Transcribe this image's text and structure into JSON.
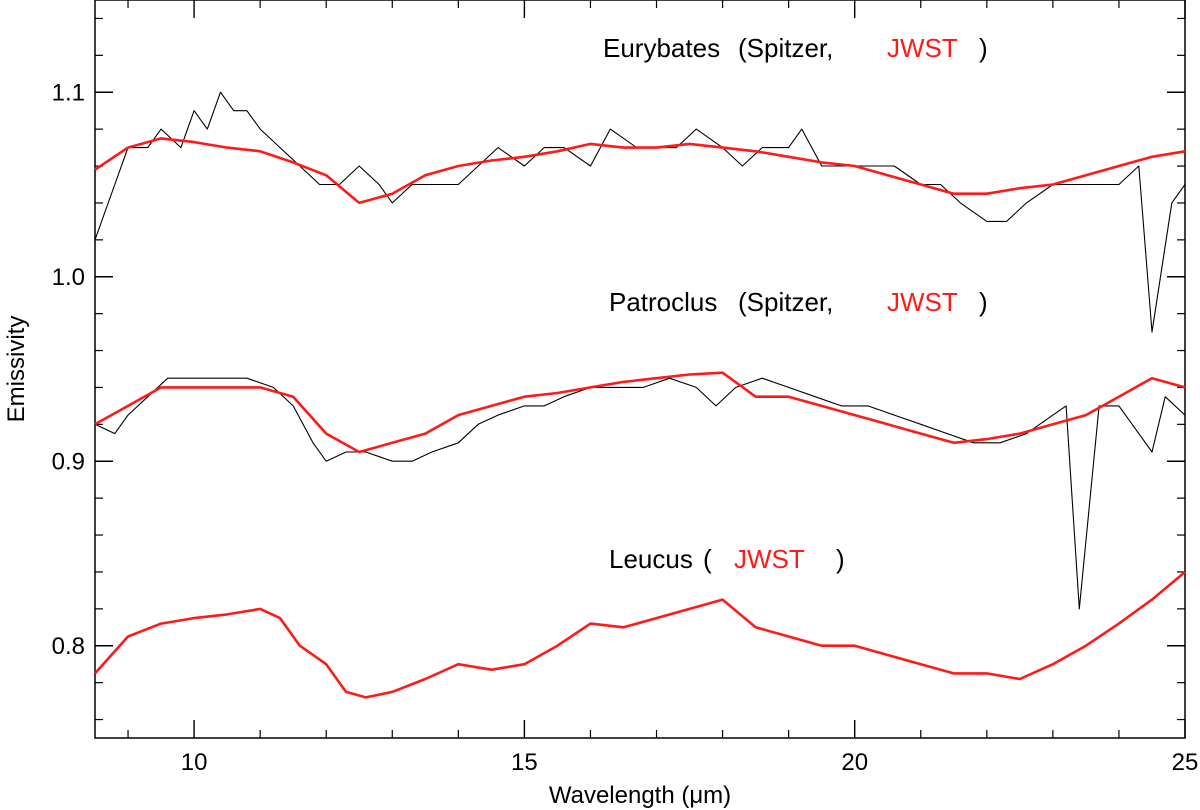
{
  "chart_data": {
    "type": "line",
    "title": "",
    "xlabel": "Wavelength (μm)",
    "ylabel": "Emissivity",
    "xlim": [
      8.5,
      25
    ],
    "ylim": [
      0.75,
      1.15
    ],
    "x_ticks": [
      {
        "value": 10,
        "label": "10"
      },
      {
        "value": 15,
        "label": "15"
      },
      {
        "value": 20,
        "label": "20"
      },
      {
        "value": 25,
        "label": "25"
      }
    ],
    "y_ticks": [
      {
        "value": 0.8,
        "label": "0.8"
      },
      {
        "value": 0.9,
        "label": "0.9"
      },
      {
        "value": 1.0,
        "label": "1.0"
      },
      {
        "value": 1.1,
        "label": "1.1"
      }
    ],
    "annotations": {
      "eurybates": {
        "name": "Eurybates",
        "open": "(Spitzer,",
        "jwst": "JWST",
        "close": ")"
      },
      "patroclus": {
        "name": "Patroclus",
        "open": "(Spitzer,",
        "jwst": "JWST",
        "close": ")"
      },
      "leucus": {
        "name": "Leucus",
        "open": "(",
        "jwst": "JWST",
        "close": ")"
      }
    },
    "colors": {
      "spitzer": "#000000",
      "jwst": "#ff1a1a"
    },
    "series": [
      {
        "name": "Eurybates Spitzer",
        "color": "#000000",
        "x": [
          8.5,
          8.8,
          9.0,
          9.3,
          9.5,
          9.8,
          10.0,
          10.2,
          10.4,
          10.6,
          10.8,
          11.0,
          11.3,
          11.6,
          11.9,
          12.2,
          12.5,
          12.8,
          13.0,
          13.3,
          13.6,
          14.0,
          14.3,
          14.6,
          15.0,
          15.3,
          15.6,
          16.0,
          16.3,
          16.7,
          17.0,
          17.3,
          17.6,
          18.0,
          18.3,
          18.6,
          19.0,
          19.2,
          19.5,
          19.8,
          20.2,
          20.6,
          21.0,
          21.3,
          21.6,
          22.0,
          22.3,
          22.6,
          23.0,
          23.3,
          23.6,
          24.0,
          24.3,
          24.5,
          24.8,
          25.0
        ],
        "values": [
          1.02,
          1.05,
          1.07,
          1.07,
          1.08,
          1.07,
          1.09,
          1.08,
          1.1,
          1.09,
          1.09,
          1.08,
          1.07,
          1.06,
          1.05,
          1.05,
          1.06,
          1.05,
          1.04,
          1.05,
          1.05,
          1.05,
          1.06,
          1.07,
          1.06,
          1.07,
          1.07,
          1.06,
          1.08,
          1.07,
          1.07,
          1.07,
          1.08,
          1.07,
          1.06,
          1.07,
          1.07,
          1.08,
          1.06,
          1.06,
          1.06,
          1.06,
          1.05,
          1.05,
          1.04,
          1.03,
          1.03,
          1.04,
          1.05,
          1.05,
          1.05,
          1.05,
          1.06,
          0.97,
          1.04,
          1.05
        ]
      },
      {
        "name": "Eurybates JWST",
        "color": "#ff1a1a",
        "x": [
          8.5,
          9.0,
          9.5,
          10.0,
          10.5,
          11.0,
          11.5,
          12.0,
          12.5,
          13.0,
          13.5,
          14.0,
          14.5,
          15.0,
          15.5,
          16.0,
          16.5,
          17.0,
          17.5,
          18.0,
          18.5,
          19.0,
          19.5,
          20.0,
          20.5,
          21.0,
          21.5,
          22.0,
          22.5,
          23.0,
          23.5,
          24.0,
          24.5,
          25.0
        ],
        "values": [
          1.058,
          1.07,
          1.075,
          1.073,
          1.07,
          1.068,
          1.062,
          1.055,
          1.04,
          1.045,
          1.055,
          1.06,
          1.063,
          1.065,
          1.068,
          1.072,
          1.07,
          1.07,
          1.072,
          1.07,
          1.068,
          1.065,
          1.062,
          1.06,
          1.055,
          1.05,
          1.045,
          1.045,
          1.048,
          1.05,
          1.055,
          1.06,
          1.065,
          1.068
        ]
      },
      {
        "name": "Patroclus Spitzer",
        "color": "#000000",
        "x": [
          8.5,
          8.8,
          9.0,
          9.3,
          9.6,
          10.0,
          10.4,
          10.8,
          11.2,
          11.5,
          11.8,
          12.0,
          12.3,
          12.6,
          13.0,
          13.3,
          13.6,
          14.0,
          14.3,
          14.6,
          15.0,
          15.3,
          15.6,
          16.0,
          16.4,
          16.8,
          17.2,
          17.6,
          17.9,
          18.2,
          18.6,
          19.0,
          19.4,
          19.8,
          20.2,
          20.6,
          21.0,
          21.4,
          21.8,
          22.2,
          22.6,
          23.0,
          23.2,
          23.4,
          23.7,
          24.0,
          24.5,
          24.7,
          25.0
        ],
        "values": [
          0.92,
          0.915,
          0.925,
          0.935,
          0.945,
          0.945,
          0.945,
          0.945,
          0.94,
          0.93,
          0.91,
          0.9,
          0.905,
          0.905,
          0.9,
          0.9,
          0.905,
          0.91,
          0.92,
          0.925,
          0.93,
          0.93,
          0.935,
          0.94,
          0.94,
          0.94,
          0.945,
          0.94,
          0.93,
          0.94,
          0.945,
          0.94,
          0.935,
          0.93,
          0.93,
          0.925,
          0.92,
          0.915,
          0.91,
          0.91,
          0.915,
          0.925,
          0.93,
          0.82,
          0.93,
          0.93,
          0.905,
          0.935,
          0.925
        ]
      },
      {
        "name": "Patroclus JWST",
        "color": "#ff1a1a",
        "x": [
          8.5,
          9.0,
          9.5,
          10.0,
          10.5,
          11.0,
          11.5,
          12.0,
          12.5,
          13.0,
          13.5,
          14.0,
          14.5,
          15.0,
          15.5,
          16.0,
          16.5,
          17.0,
          17.5,
          18.0,
          18.5,
          19.0,
          19.5,
          20.0,
          20.5,
          21.0,
          21.5,
          22.0,
          22.5,
          23.0,
          23.5,
          24.0,
          24.5,
          25.0
        ],
        "values": [
          0.92,
          0.93,
          0.94,
          0.94,
          0.94,
          0.94,
          0.935,
          0.915,
          0.905,
          0.91,
          0.915,
          0.925,
          0.93,
          0.935,
          0.937,
          0.94,
          0.943,
          0.945,
          0.947,
          0.948,
          0.935,
          0.935,
          0.93,
          0.925,
          0.92,
          0.915,
          0.91,
          0.912,
          0.915,
          0.92,
          0.925,
          0.935,
          0.945,
          0.94
        ]
      },
      {
        "name": "Leucus JWST",
        "color": "#ff1a1a",
        "x": [
          8.5,
          9.0,
          9.5,
          10.0,
          10.5,
          11.0,
          11.3,
          11.6,
          12.0,
          12.3,
          12.6,
          13.0,
          13.5,
          14.0,
          14.5,
          15.0,
          15.5,
          16.0,
          16.5,
          17.0,
          17.5,
          18.0,
          18.5,
          19.0,
          19.5,
          20.0,
          20.5,
          21.0,
          21.5,
          22.0,
          22.5,
          23.0,
          23.5,
          24.0,
          24.5,
          25.0
        ],
        "values": [
          0.785,
          0.805,
          0.812,
          0.815,
          0.817,
          0.82,
          0.815,
          0.8,
          0.79,
          0.775,
          0.772,
          0.775,
          0.782,
          0.79,
          0.787,
          0.79,
          0.8,
          0.812,
          0.81,
          0.815,
          0.82,
          0.825,
          0.81,
          0.805,
          0.8,
          0.8,
          0.795,
          0.79,
          0.785,
          0.785,
          0.782,
          0.79,
          0.8,
          0.812,
          0.825,
          0.84
        ]
      }
    ]
  }
}
